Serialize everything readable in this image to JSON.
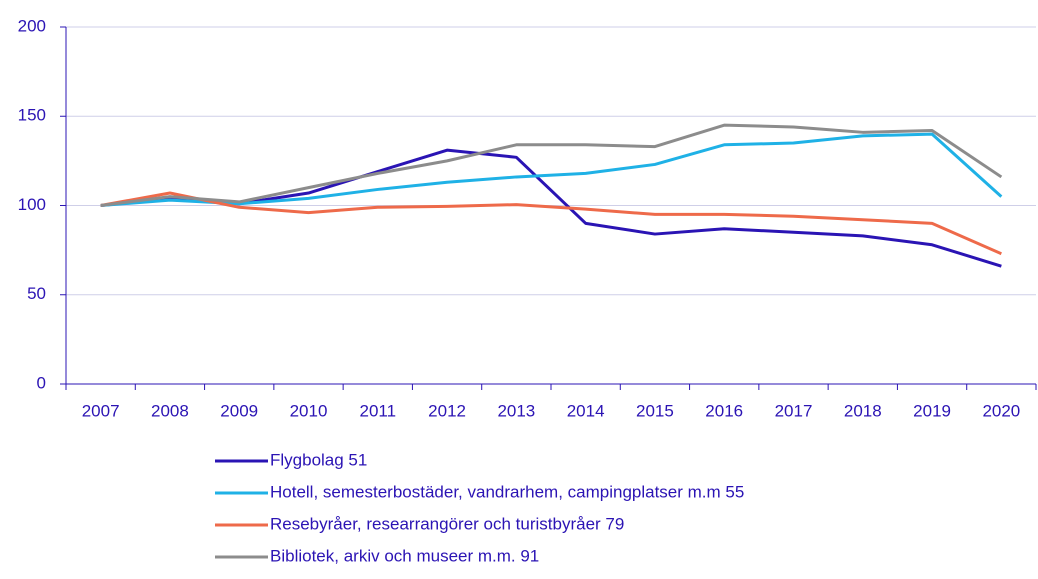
{
  "chart_data": {
    "type": "line",
    "categories": [
      "2007",
      "2008",
      "2009",
      "2010",
      "2011",
      "2012",
      "2013",
      "2014",
      "2015",
      "2016",
      "2017",
      "2018",
      "2019",
      "2020"
    ],
    "series": [
      {
        "name": "Flygbolag 51",
        "color": "#2a14b4",
        "values": [
          100,
          104,
          101,
          107,
          119,
          131,
          127,
          90,
          84,
          87,
          85,
          83,
          78,
          66
        ]
      },
      {
        "name": "Hotell, semesterbostäder, vandrarhem, campingplatser m.m 55",
        "color": "#1fb1e6",
        "values": [
          100,
          103,
          101,
          104,
          109,
          113,
          116,
          118,
          123,
          134,
          135,
          139,
          140,
          105
        ]
      },
      {
        "name": "Resebyråer, researrangörer och turistbyråer 79",
        "color": "#ee6a4a",
        "values": [
          100,
          107,
          99,
          96,
          99,
          99.5,
          100.5,
          98,
          95,
          95,
          94,
          92,
          90,
          73
        ]
      },
      {
        "name": "Bibliotek, arkiv och museer m.m. 91",
        "color": "#8c8c8c",
        "values": [
          100,
          105,
          102,
          110,
          118,
          125,
          134,
          134,
          133,
          145,
          144,
          141,
          142,
          116
        ]
      }
    ],
    "ylim": [
      0,
      200
    ],
    "yticks": [
      0,
      50,
      100,
      150,
      200
    ],
    "grid": true
  }
}
